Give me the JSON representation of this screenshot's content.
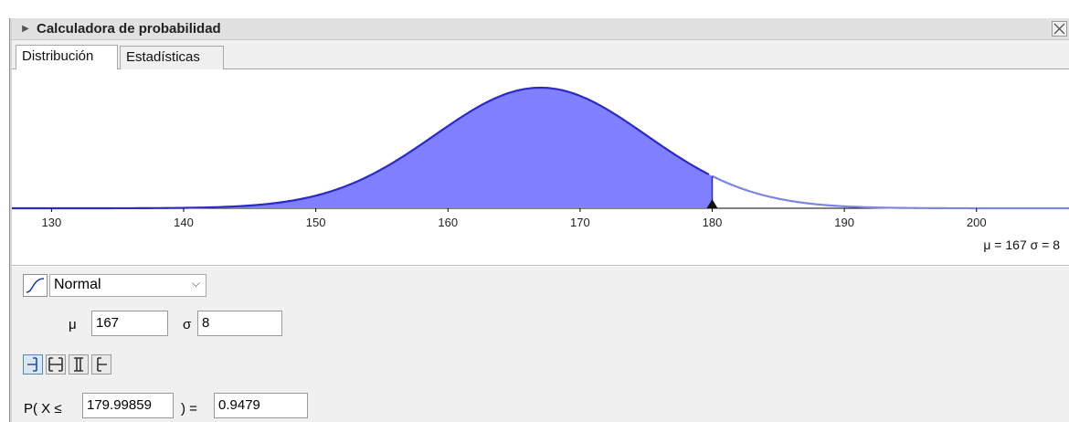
{
  "window": {
    "title": "Calculadora de probabilidad"
  },
  "tabs": [
    {
      "label": "Distribución",
      "active": true
    },
    {
      "label": "Estadísticas",
      "active": false
    }
  ],
  "plot": {
    "type": "normal_density",
    "mean": 167,
    "sd": 8,
    "xlim": [
      127,
      207
    ],
    "ticks": [
      "130",
      "140",
      "150",
      "160",
      "170",
      "180",
      "190",
      "200"
    ],
    "shaded_upper_bound": 179.99859,
    "params_label": "μ = 167   σ = 8",
    "colors": {
      "fill": "#7f7fff",
      "curve": "#2b2bc4",
      "curve_tail": "#7b86e0"
    }
  },
  "distribution": {
    "selected": "Normal",
    "icon": "cumulative-curve-icon"
  },
  "parameters": [
    {
      "symbol": "μ",
      "value": "167"
    },
    {
      "symbol": "σ",
      "value": "8"
    }
  ],
  "interval_buttons": [
    {
      "name": "left-sided-interval-icon",
      "active": true
    },
    {
      "name": "two-sided-interval-icon",
      "active": false
    },
    {
      "name": "interval-icon",
      "active": false
    },
    {
      "name": "right-sided-interval-icon",
      "active": false
    }
  ],
  "probability": {
    "prefix": "P( X ≤",
    "bound": "179.99859",
    "equals": ") =",
    "result": "0.9479"
  }
}
